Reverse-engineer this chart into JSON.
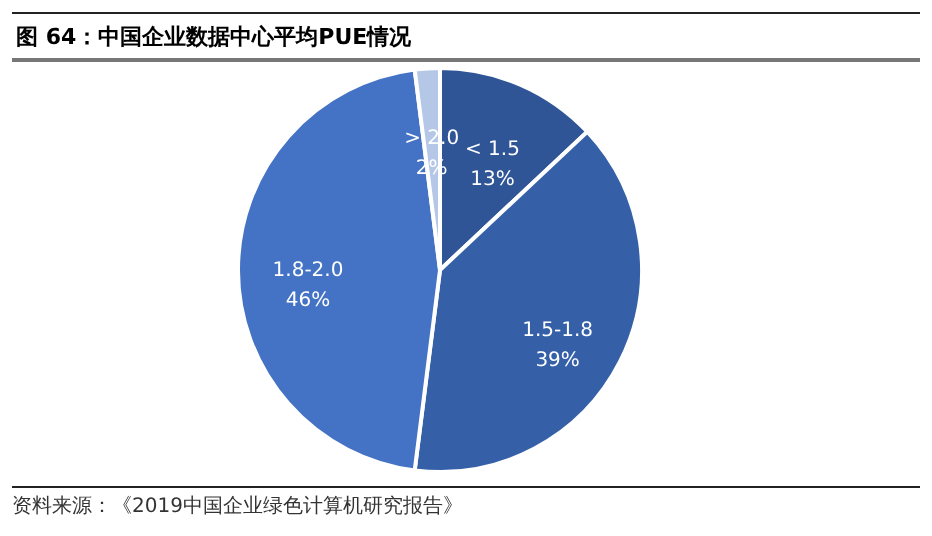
{
  "chart_data": {
    "type": "pie",
    "title": "图 64：中国企业数据中心平均PUE情况",
    "categories": [
      "< 1.5",
      "1.5-1.8",
      "1.8-2.0",
      "> 2.0"
    ],
    "values": [
      13,
      39,
      46,
      2
    ],
    "colors": [
      "#2f5597",
      "#3560a8",
      "#4472c4",
      "#b4c7e7"
    ],
    "value_labels": [
      "13%",
      "39%",
      "46%",
      "2%"
    ],
    "annotations": [
      "资料来源：《2019中国企业绿色计算机研究报告》"
    ]
  }
}
